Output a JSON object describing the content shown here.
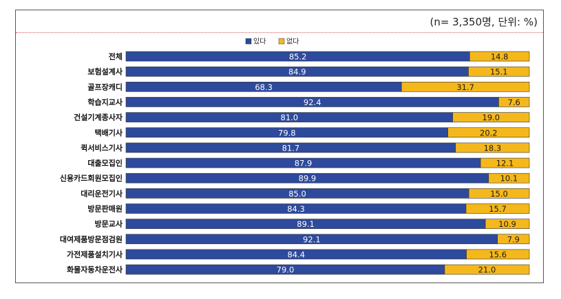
{
  "note": "(n= 3,350명, 단위: %)",
  "chart_data": {
    "type": "bar",
    "orientation": "horizontal",
    "stacked": true,
    "categories": [
      "전체",
      "보험설계사",
      "골프장캐디",
      "학습지교사",
      "건설기계종사자",
      "택배기사",
      "퀵서비스기사",
      "대출모집인",
      "신용카드회원모집인",
      "대리운전기사",
      "방문판매원",
      "방문교사",
      "대여제품방문점검원",
      "가전제품설치기사",
      "화물자동차운전사"
    ],
    "series": [
      {
        "name": "있다",
        "color": "#2e4a9c",
        "values": [
          85.2,
          84.9,
          68.3,
          92.4,
          81.0,
          79.8,
          81.7,
          87.9,
          89.9,
          85.0,
          84.3,
          89.1,
          92.1,
          84.4,
          79.0
        ]
      },
      {
        "name": "없다",
        "color": "#f5b81c",
        "values": [
          14.8,
          15.1,
          31.7,
          7.6,
          19.0,
          20.2,
          18.3,
          12.1,
          10.1,
          15.0,
          15.7,
          10.9,
          7.9,
          15.6,
          21.0
        ]
      }
    ],
    "value_labels": [
      [
        "85.2",
        "84.9",
        "68.3",
        "92.4",
        "81.0",
        "79.8",
        "81.7",
        "87.9",
        "89.9",
        "85.0",
        "84.3",
        "89.1",
        "92.1",
        "84.4",
        "79.0"
      ],
      [
        "14.8",
        "15.1",
        "31.7",
        "7.6",
        "19.0",
        "20.2",
        "18.3",
        "12.1",
        "10.1",
        "15.0",
        "15.7",
        "10.9",
        "7.9",
        "15.6",
        "21.0"
      ]
    ],
    "xlim": [
      0,
      100
    ],
    "legend": "top-center",
    "grid": false
  }
}
